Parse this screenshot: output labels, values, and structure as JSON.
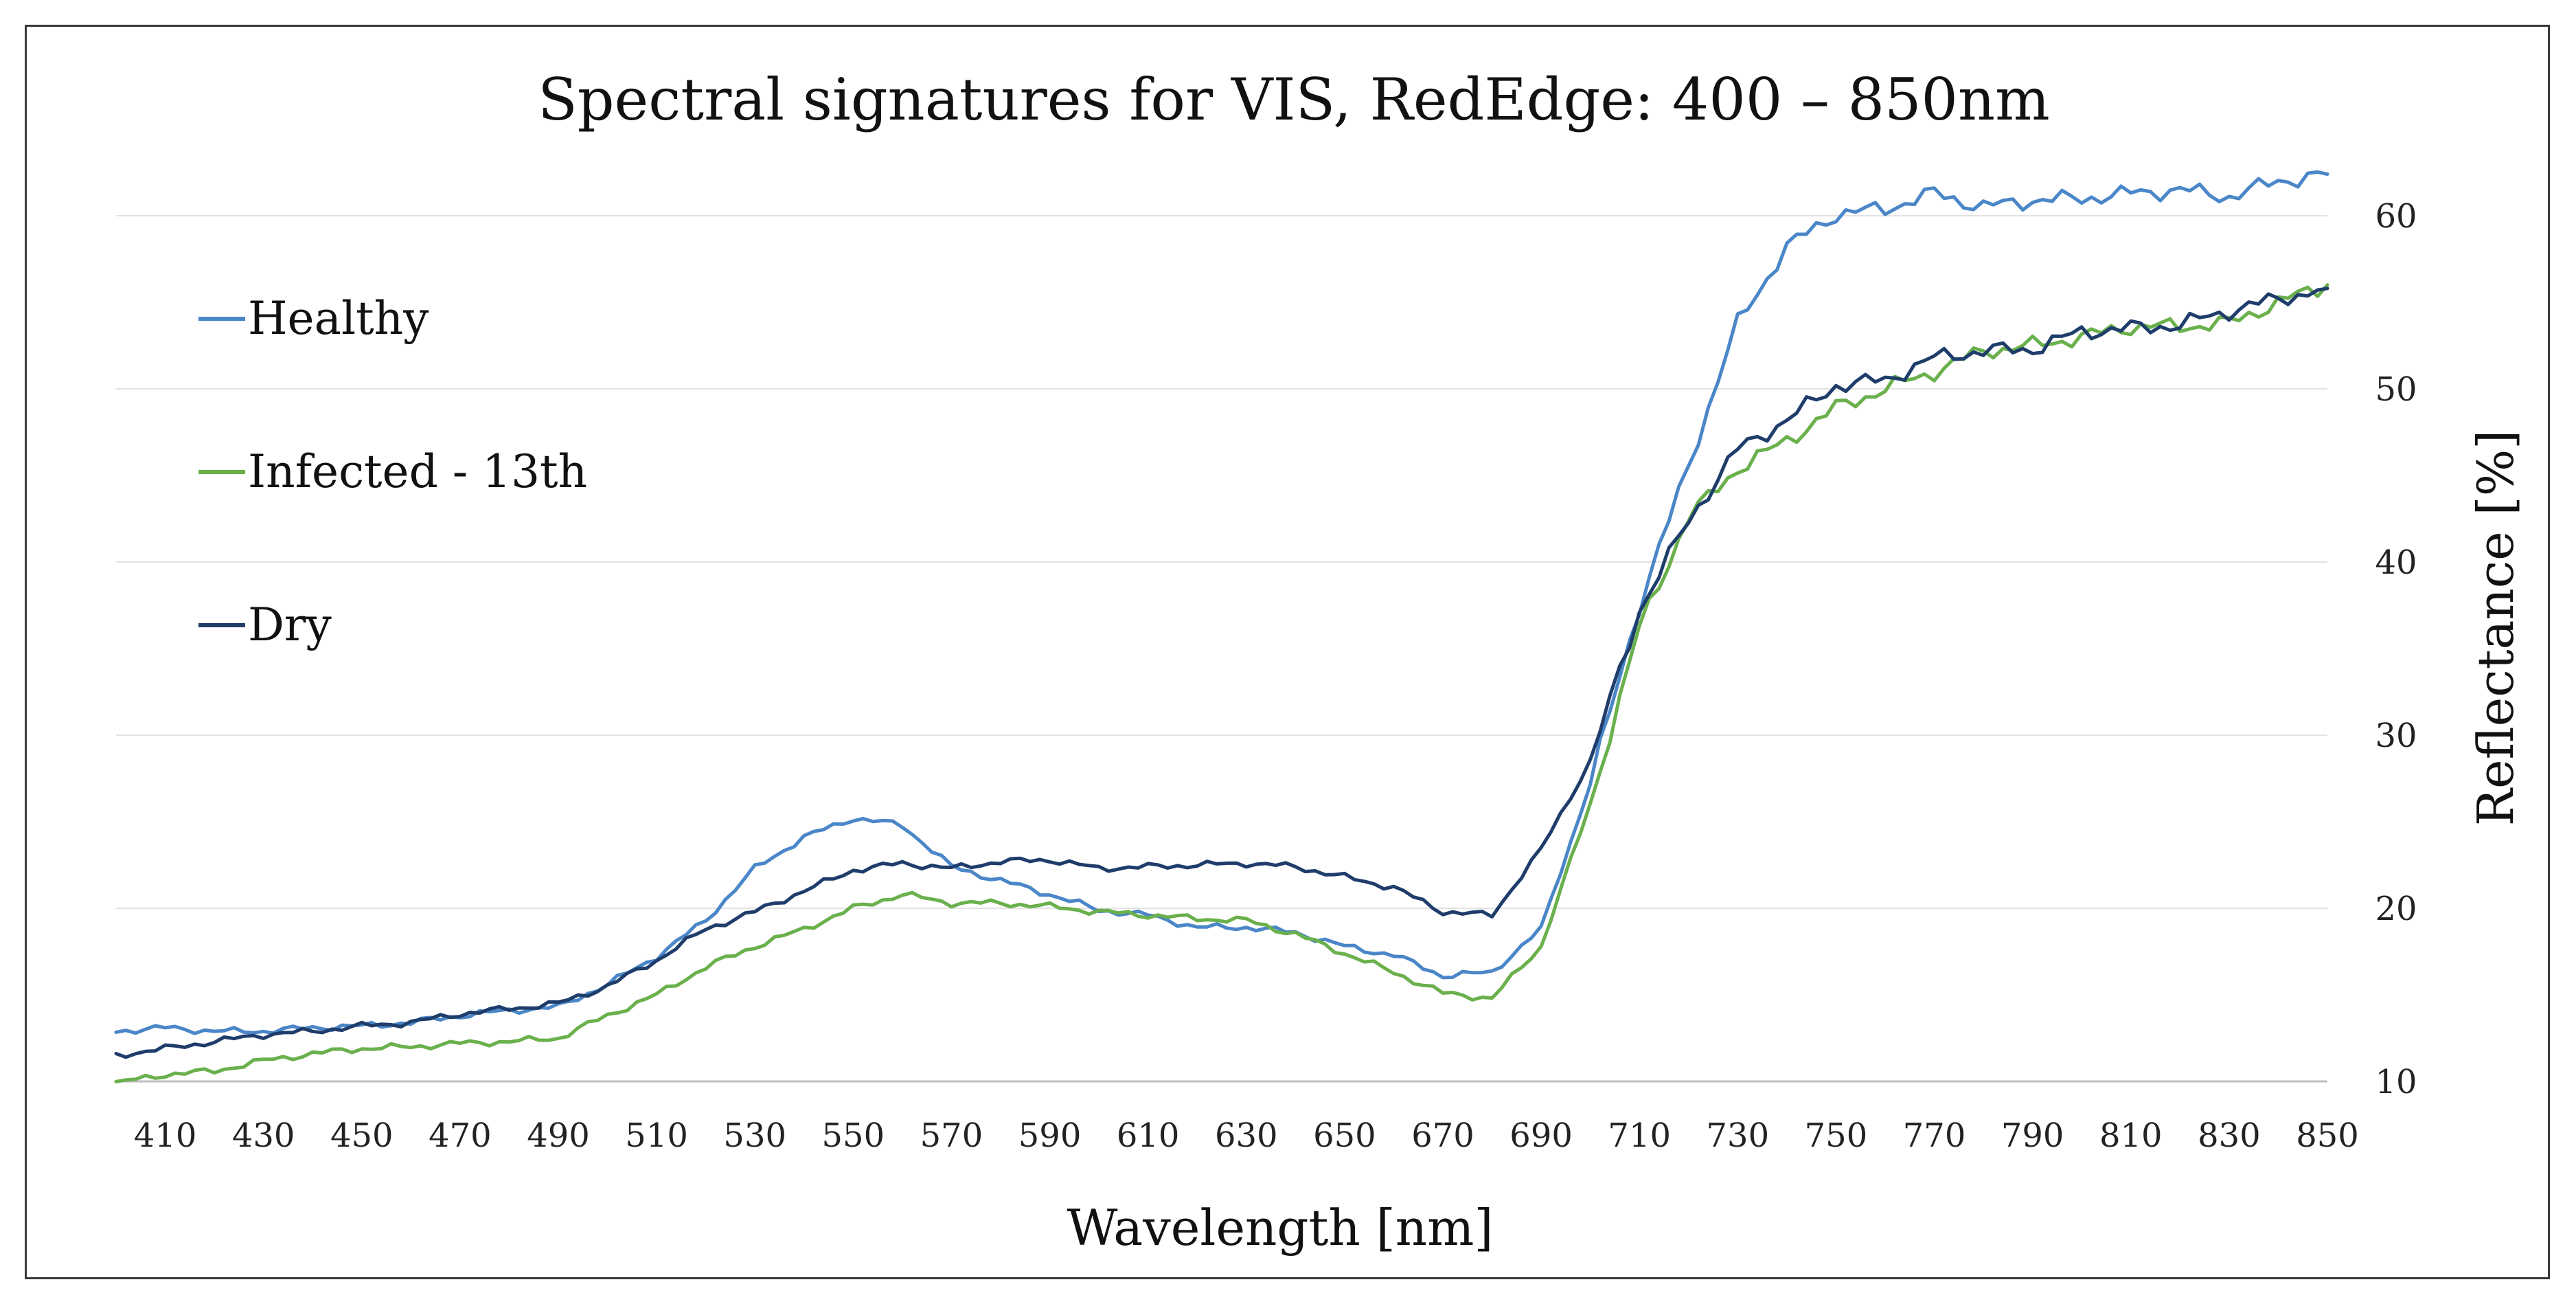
{
  "chart_data": {
    "type": "line",
    "title": "Spectral signatures for VIS, RedEdge: 400 – 850nm",
    "xlabel": "Wavelength [nm]",
    "ylabel": "Reflectance [%]",
    "xlim": [
      400,
      850
    ],
    "ylim": [
      10,
      60
    ],
    "x_ticks": [
      410,
      430,
      450,
      470,
      490,
      510,
      530,
      550,
      570,
      590,
      610,
      630,
      650,
      670,
      690,
      710,
      730,
      750,
      770,
      790,
      810,
      830,
      850
    ],
    "y_ticks": [
      10,
      20,
      30,
      40,
      50,
      60
    ],
    "y_axis_side": "right",
    "grid": "horizontal",
    "legend": "left",
    "x": [
      400,
      410,
      420,
      430,
      440,
      450,
      460,
      470,
      480,
      490,
      500,
      510,
      520,
      530,
      540,
      550,
      560,
      570,
      580,
      590,
      600,
      610,
      620,
      630,
      640,
      650,
      660,
      670,
      680,
      690,
      700,
      710,
      720,
      730,
      740,
      750,
      760,
      770,
      780,
      790,
      800,
      810,
      820,
      830,
      840,
      850
    ],
    "series": [
      {
        "name": "Healthy",
        "color": "#4a86c8",
        "values": [
          12.9,
          13.1,
          12.9,
          12.9,
          13.1,
          13.2,
          13.4,
          13.8,
          14.1,
          14.3,
          15.6,
          17.2,
          19.3,
          22.3,
          24.1,
          25.2,
          24.8,
          22.4,
          21.6,
          20.8,
          19.9,
          19.6,
          18.9,
          18.9,
          18.6,
          17.8,
          17.3,
          16.1,
          16.3,
          18.8,
          27.2,
          37.5,
          45.6,
          53.8,
          58.2,
          60.1,
          60.4,
          61.3,
          60.5,
          60.9,
          61.0,
          61.3,
          61.5,
          61.1,
          62.0,
          62.4
        ]
      },
      {
        "name": "Infected - 13th",
        "color": "#6ab04c",
        "values": [
          9.9,
          10.4,
          10.6,
          11.2,
          11.6,
          11.9,
          12.0,
          12.2,
          12.3,
          12.5,
          13.8,
          15.0,
          16.6,
          17.8,
          18.8,
          20.0,
          20.8,
          20.3,
          20.3,
          20.1,
          19.8,
          19.6,
          19.4,
          19.3,
          18.5,
          17.4,
          16.3,
          15.1,
          14.8,
          17.8,
          26.0,
          36.2,
          42.6,
          45.4,
          47.0,
          48.9,
          50.0,
          51.0,
          52.2,
          52.5,
          53.0,
          53.6,
          53.6,
          53.8,
          55.0,
          56.0
        ]
      },
      {
        "name": "Dry",
        "color": "#1f3d6b",
        "values": [
          11.5,
          11.9,
          12.3,
          12.7,
          12.9,
          13.2,
          13.4,
          13.9,
          14.2,
          14.5,
          15.5,
          17.0,
          18.8,
          19.8,
          21.0,
          22.2,
          22.6,
          22.3,
          22.7,
          22.8,
          22.3,
          22.4,
          22.5,
          22.6,
          22.4,
          21.8,
          21.2,
          19.8,
          19.6,
          23.4,
          28.5,
          37.2,
          42.4,
          46.5,
          48.2,
          50.2,
          50.5,
          51.8,
          52.2,
          52.3,
          53.3,
          53.5,
          53.7,
          54.5,
          55.2,
          55.8
        ]
      }
    ]
  }
}
